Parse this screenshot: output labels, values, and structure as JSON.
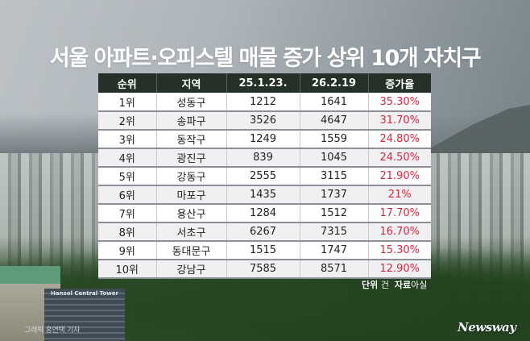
{
  "title": "서울 아파트·오피스텔 매물 증가 상위 10개 자치구",
  "table": {
    "headers": [
      "순위",
      "지역",
      "25.1.23.",
      "26.2.19",
      "증가율"
    ],
    "rows": [
      {
        "rank": "1위",
        "district": "성동구",
        "before": "1212",
        "after": "1641",
        "rate": "35.30%"
      },
      {
        "rank": "2위",
        "district": "송파구",
        "before": "3526",
        "after": "4647",
        "rate": "31.70%"
      },
      {
        "rank": "3위",
        "district": "동작구",
        "before": "1249",
        "after": "1559",
        "rate": "24.80%"
      },
      {
        "rank": "4위",
        "district": "광진구",
        "before": "839",
        "after": "1045",
        "rate": "24.50%"
      },
      {
        "rank": "5위",
        "district": "강동구",
        "before": "2555",
        "after": "3115",
        "rate": "21.90%"
      },
      {
        "rank": "6위",
        "district": "마포구",
        "before": "1435",
        "after": "1737",
        "rate": "21%"
      },
      {
        "rank": "7위",
        "district": "용산구",
        "before": "1284",
        "after": "1512",
        "rate": "17.70%"
      },
      {
        "rank": "8위",
        "district": "서초구",
        "before": "6267",
        "after": "7315",
        "rate": "16.70%"
      },
      {
        "rank": "9위",
        "district": "동대문구",
        "before": "1515",
        "after": "1747",
        "rate": "15.30%"
      },
      {
        "rank": "10위",
        "district": "강남구",
        "before": "7585",
        "after": "8571",
        "rate": "12.90%"
      }
    ]
  },
  "footer": {
    "unit_label": "단위",
    "unit_value": "건",
    "source_label": "자료",
    "source_value": "아실",
    "credit": "그래픽 홍연택 기자",
    "logo": "Newsway",
    "building_sign": "Hansol Central Tower"
  },
  "colors": {
    "header_bg": "#243028",
    "rate_text": "#d6283e",
    "title_text": "#ffffff"
  }
}
